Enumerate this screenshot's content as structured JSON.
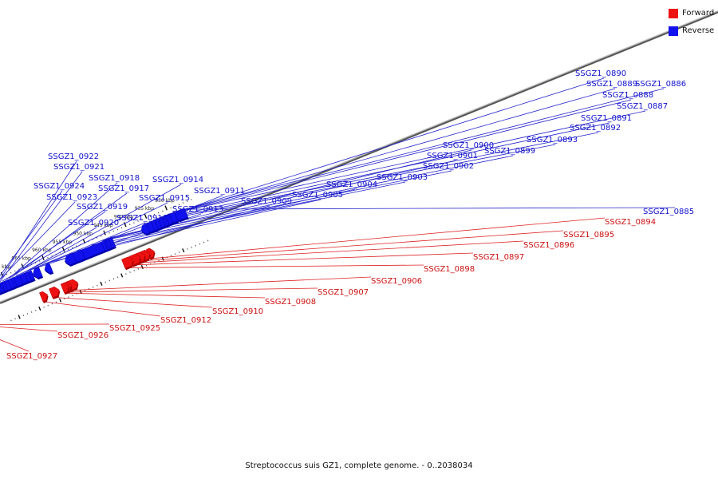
{
  "caption": "Streptococcus suis GZ1, complete genome. - 0..2038034",
  "legend": [
    {
      "label": "Forward",
      "color": "#ee1111"
    },
    {
      "label": "Reverse",
      "color": "#1111ee"
    }
  ],
  "axis": {
    "tick_labels": [
      {
        "label": "930 kbp",
        "kbp": 930
      },
      {
        "label": "935 kbp",
        "kbp": 935
      },
      {
        "label": "940 kbp",
        "kbp": 940
      },
      {
        "label": "945 kbp",
        "kbp": 945
      },
      {
        "label": "950 kbp",
        "kbp": 950
      },
      {
        "label": "955 kbp",
        "kbp": 955
      },
      {
        "label": "960 kbp",
        "kbp": 960
      },
      {
        "label": "965 kbp",
        "kbp": 965
      },
      {
        "label": "970 kbp",
        "kbp": 970
      },
      {
        "label": "975 kbp",
        "kbp": 975
      }
    ]
  },
  "genes": [
    {
      "name": "SSGZ1_0885",
      "strand": "reverse",
      "start": 926.2,
      "end": 928.3
    },
    {
      "name": "SSGZ1_0886",
      "strand": "reverse",
      "start": 928.6,
      "end": 929.7
    },
    {
      "name": "SSGZ1_0887",
      "strand": "reverse",
      "start": 929.9,
      "end": 930.6
    },
    {
      "name": "SSGZ1_0888",
      "strand": "reverse",
      "start": 930.8,
      "end": 931.5
    },
    {
      "name": "SSGZ1_0889",
      "strand": "reverse",
      "start": 931.7,
      "end": 932.4
    },
    {
      "name": "SSGZ1_0890",
      "strand": "reverse",
      "start": 932.6,
      "end": 933.3
    },
    {
      "name": "SSGZ1_0891",
      "strand": "reverse",
      "start": 933.5,
      "end": 934.1
    },
    {
      "name": "SSGZ1_0892",
      "strand": "reverse",
      "start": 934.3,
      "end": 935.3
    },
    {
      "name": "SSGZ1_0893",
      "strand": "reverse",
      "start": 935.5,
      "end": 936.4
    },
    {
      "name": "SSGZ1_0894",
      "strand": "forward",
      "start": 936.9,
      "end": 937.7
    },
    {
      "name": "SSGZ1_0895",
      "strand": "forward",
      "start": 938.0,
      "end": 939.1
    },
    {
      "name": "SSGZ1_0896",
      "strand": "forward",
      "start": 939.2,
      "end": 940.2
    },
    {
      "name": "SSGZ1_0897",
      "strand": "forward",
      "start": 940.3,
      "end": 941.9
    },
    {
      "name": "SSGZ1_0898",
      "strand": "forward",
      "start": 942.1,
      "end": 943.7
    },
    {
      "name": "SSGZ1_0899",
      "strand": "reverse",
      "start": 943.9,
      "end": 944.6
    },
    {
      "name": "SSGZ1_0900",
      "strand": "reverse",
      "start": 944.7,
      "end": 945.6
    },
    {
      "name": "SSGZ1_0901",
      "strand": "reverse",
      "start": 945.6,
      "end": 945.9
    },
    {
      "name": "SSGZ1_0902",
      "strand": "reverse",
      "start": 946.0,
      "end": 946.4
    },
    {
      "name": "SSGZ1_0903",
      "strand": "reverse",
      "start": 946.5,
      "end": 951.2
    },
    {
      "name": "SSGZ1_0904",
      "strand": "reverse",
      "start": 951.3,
      "end": 953.3
    },
    {
      "name": "SSGZ1_0905",
      "strand": "reverse",
      "start": 953.4,
      "end": 955.0
    },
    {
      "name": "SSGZ1_0906",
      "strand": "forward",
      "start": 955.6,
      "end": 957.2
    },
    {
      "name": "SSGZ1_0907",
      "strand": "forward",
      "start": 957.3,
      "end": 957.8
    },
    {
      "name": "SSGZ1_0908",
      "strand": "forward",
      "start": 957.9,
      "end": 958.4
    },
    {
      "name": "SSGZ1_0909",
      "strand": "reverse",
      "start": 959.4,
      "end": 959.7
    },
    {
      "name": "SSGZ1_0910",
      "strand": "forward",
      "start": 960.1,
      "end": 961.4
    },
    {
      "name": "SSGZ1_0911",
      "strand": "reverse",
      "start": 961.7,
      "end": 962.8
    },
    {
      "name": "SSGZ1_0912",
      "strand": "forward",
      "start": 963.3,
      "end": 963.4
    },
    {
      "name": "SSGZ1_0913",
      "strand": "reverse",
      "start": 963.7,
      "end": 964.2
    },
    {
      "name": "SSGZ1_0914",
      "strand": "reverse",
      "start": 964.4,
      "end": 965.1
    },
    {
      "name": "SSGZ1_0915",
      "strand": "reverse",
      "start": 965.2,
      "end": 966.3
    },
    {
      "name": "SSGZ1_0916",
      "strand": "reverse",
      "start": 966.4,
      "end": 968.0
    },
    {
      "name": "SSGZ1_0917",
      "strand": "reverse",
      "start": 968.1,
      "end": 968.4
    },
    {
      "name": "SSGZ1_0918",
      "strand": "reverse",
      "start": 968.5,
      "end": 969.1
    },
    {
      "name": "SSGZ1_0919",
      "strand": "reverse",
      "start": 969.2,
      "end": 970.1
    },
    {
      "name": "SSGZ1_0920",
      "strand": "reverse",
      "start": 970.2,
      "end": 970.9
    },
    {
      "name": "SSGZ1_0921",
      "strand": "reverse",
      "start": 971.0,
      "end": 971.4
    },
    {
      "name": "SSGZ1_0922",
      "strand": "reverse",
      "start": 971.5,
      "end": 971.9
    },
    {
      "name": "SSGZ1_0923",
      "strand": "reverse",
      "start": 972.0,
      "end": 972.3
    },
    {
      "name": "SSGZ1_0924",
      "strand": "reverse",
      "start": 972.4,
      "end": 973.1
    },
    {
      "name": "SSGZ1_0925",
      "strand": "forward",
      "start": 976.8,
      "end": 977.3
    },
    {
      "name": "SSGZ1_0926",
      "strand": "forward",
      "start": 977.5,
      "end": 978.1
    },
    {
      "name": "SSGZ1_0927",
      "strand": "forward",
      "start": 979.9,
      "end": 980.6
    }
  ],
  "extra_reverse": [
    {
      "start": 979.0,
      "end": 979.4
    },
    {
      "start": 979.6,
      "end": 979.9
    }
  ]
}
